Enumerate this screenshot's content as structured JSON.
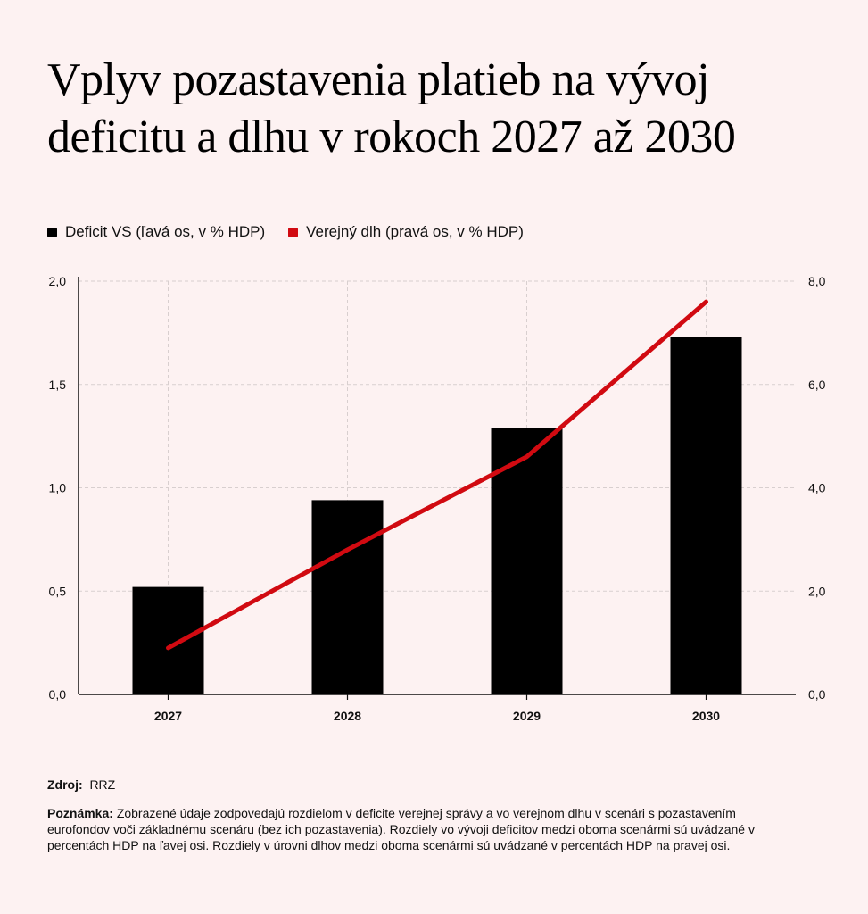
{
  "title_line1": "Vplyv pozastavenia platieb na vývoj",
  "title_line2": "deficitu a dlhu v rokoch 2027 až 2030",
  "legend": {
    "deficit": "Deficit VS (ľavá os, v % HDP)",
    "debt": "Verejný dlh (pravá os, v % HDP)"
  },
  "colors": {
    "deficit": "#000000",
    "debt": "#d10a11",
    "background": "#fdf2f2",
    "grid": "#d8cfcf"
  },
  "chart_data": {
    "type": "bar",
    "categories": [
      "2027",
      "2028",
      "2029",
      "2030"
    ],
    "series": [
      {
        "name": "Deficit VS (ľavá os, v % HDP)",
        "type": "bar",
        "axis": "left",
        "values": [
          0.52,
          0.94,
          1.29,
          1.73
        ]
      },
      {
        "name": "Verejný dlh (pravá os, v % HDP)",
        "type": "line",
        "axis": "right",
        "values": [
          0.9,
          2.8,
          4.6,
          7.6
        ]
      }
    ],
    "ylim_left": [
      0,
      2.0
    ],
    "ylim_right": [
      0,
      8.0
    ],
    "yticks_left": [
      "0,0",
      "0,5",
      "1,0",
      "1,5",
      "2,0"
    ],
    "yticks_right": [
      "0,0",
      "2,0",
      "4,0",
      "6,0",
      "8,0"
    ],
    "grid": true,
    "legend_position": "top-left"
  },
  "source": {
    "label": "Zdroj:",
    "value": "RRZ"
  },
  "note": {
    "label": "Poznámka:",
    "text": "Zobrazené údaje zodpovedajú rozdielom v deficite verejnej správy a vo verejnom dlhu v scenári s pozastavením eurofondov voči základnému scenáru (bez ich pozastavenia). Rozdiely vo vývoji deficitov medzi oboma scenármi sú uvádzané v percentách HDP na ľavej osi. Rozdiely v úrovni dlhov medzi oboma scenármi sú uvádzané v percentách HDP na pravej osi."
  }
}
